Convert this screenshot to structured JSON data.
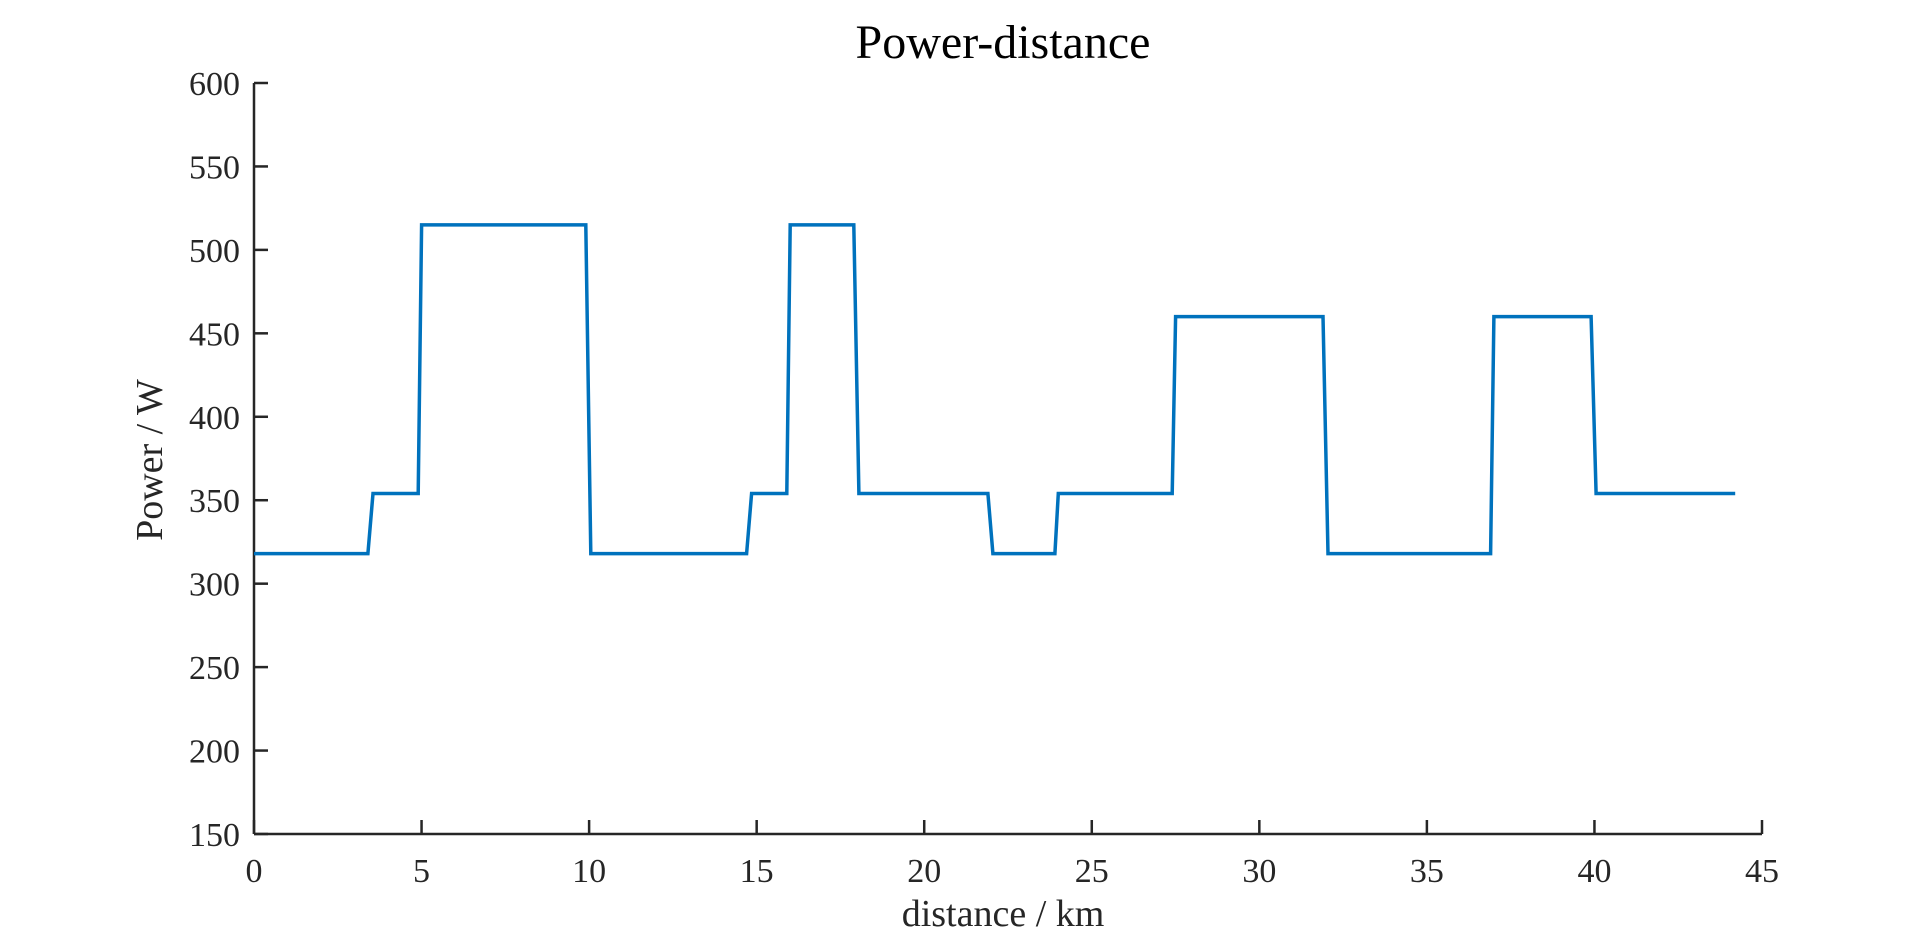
{
  "chart_data": {
    "type": "line",
    "title": "Power-distance",
    "xlabel": "distance / km",
    "ylabel": "Power / W",
    "xlim": [
      0,
      45
    ],
    "ylim": [
      150,
      600
    ],
    "xticks": [
      0,
      5,
      10,
      15,
      20,
      25,
      30,
      35,
      40,
      45
    ],
    "yticks": [
      150,
      200,
      250,
      300,
      350,
      400,
      450,
      500,
      550,
      600
    ],
    "grid": false,
    "colors": {
      "series": "#0072BD",
      "axis": "#262626"
    },
    "series": [
      {
        "x": [
          0,
          3.4,
          3.55,
          4.9,
          5.0,
          9.9,
          10.05,
          14.7,
          14.85,
          15.9,
          16.0,
          17.9,
          18.05,
          21.9,
          22.05,
          23.9,
          24.0,
          27.4,
          27.5,
          31.9,
          32.05,
          36.9,
          37.0,
          39.9,
          40.05,
          44.2
        ],
        "y": [
          318,
          318,
          354,
          354,
          515,
          515,
          318,
          318,
          354,
          354,
          515,
          515,
          354,
          354,
          318,
          318,
          354,
          354,
          460,
          460,
          318,
          318,
          460,
          460,
          354,
          354
        ]
      }
    ]
  }
}
